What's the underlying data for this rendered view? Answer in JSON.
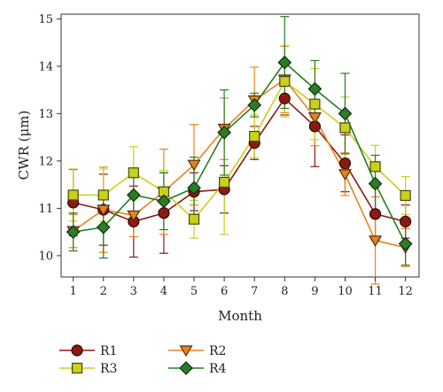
{
  "chart_data": {
    "type": "line",
    "xlabel": "Month",
    "ylabel": "CWR (μm)",
    "x": [
      1,
      2,
      3,
      4,
      5,
      6,
      7,
      8,
      9,
      10,
      11,
      12
    ],
    "xlim": [
      0.6,
      12.45
    ],
    "ylim": [
      9.55,
      15.1
    ],
    "yticks": [
      10,
      11,
      12,
      13,
      14,
      15
    ],
    "grid": false,
    "legend_position": "bottom",
    "series": [
      {
        "name": "R1",
        "color": "#8b1a12",
        "marker": "circle",
        "values": [
          11.12,
          10.97,
          10.72,
          10.9,
          11.35,
          11.4,
          12.38,
          13.32,
          12.73,
          11.95,
          10.88,
          10.72
        ],
        "errors": [
          0.7,
          0.75,
          0.75,
          0.85,
          0.4,
          0.5,
          0.35,
          0.35,
          0.85,
          0.6,
          0.55,
          0.35
        ]
      },
      {
        "name": "R2",
        "color": "#e8821d",
        "marker": "triangle-down",
        "values": [
          10.52,
          10.97,
          10.85,
          11.35,
          11.92,
          12.68,
          13.28,
          13.72,
          12.92,
          11.72,
          10.32,
          10.17
        ],
        "errors": [
          0.35,
          0.9,
          0.45,
          0.9,
          0.85,
          0.65,
          0.7,
          0.7,
          0.6,
          0.45,
          0.92,
          0.4
        ]
      },
      {
        "name": "R3",
        "color": "#c9d11a",
        "marker": "square",
        "values": [
          11.28,
          11.28,
          11.75,
          11.35,
          10.77,
          11.55,
          12.52,
          13.68,
          13.2,
          12.7,
          11.88,
          11.27
        ],
        "errors": [
          0.55,
          0.55,
          0.55,
          0.45,
          0.4,
          1.1,
          0.45,
          0.75,
          0.75,
          0.65,
          0.45,
          0.4
        ]
      },
      {
        "name": "R4",
        "color": "#2a7d24",
        "marker": "diamond",
        "values": [
          10.5,
          10.6,
          11.28,
          11.15,
          11.43,
          12.6,
          13.18,
          14.08,
          13.52,
          13.0,
          11.52,
          10.25
        ],
        "errors": [
          0.4,
          0.65,
          0.4,
          0.6,
          0.65,
          0.9,
          0.25,
          0.97,
          0.6,
          0.85,
          0.6,
          0.45
        ]
      }
    ]
  }
}
